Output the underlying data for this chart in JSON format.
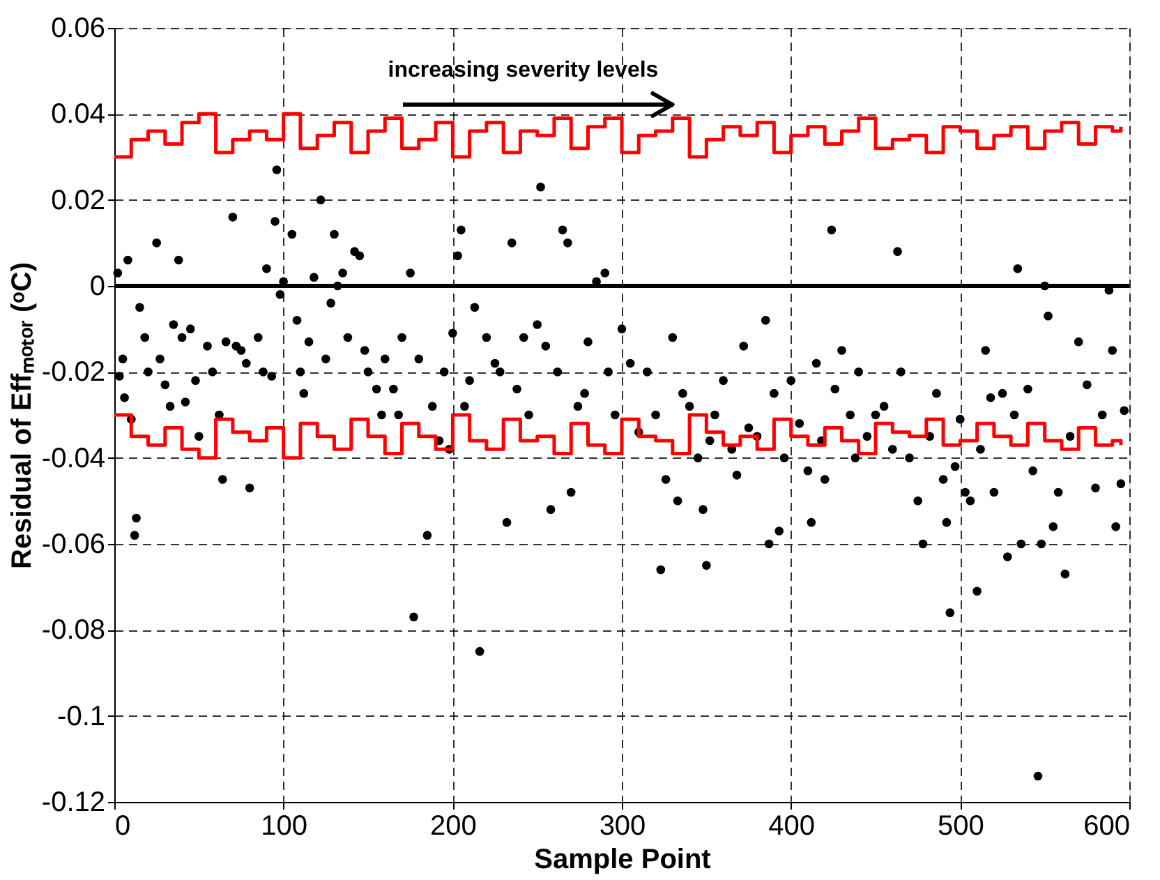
{
  "chart_data": {
    "type": "scatter",
    "xlabel": "Sample Point",
    "ylabel": "Residual of Effₘₒₜₒᵣ (ᵒC)",
    "annotations": [
      "increasing severity levels"
    ],
    "xlim": [
      0,
      600
    ],
    "xticks": [
      0,
      100,
      200,
      300,
      400,
      500,
      600
    ],
    "ylim": [
      -0.12,
      0.06
    ],
    "yticks": [
      -0.12,
      -0.1,
      -0.08,
      -0.06,
      -0.04,
      -0.02,
      0,
      0.02,
      0.04,
      0.06
    ],
    "grid": true,
    "ref_lines": [
      {
        "axis": "y",
        "value": 0,
        "color": "#000000"
      }
    ],
    "series": [
      {
        "type": "scatter",
        "marker": "circle",
        "color": "#000000",
        "x": [
          2,
          5,
          8,
          3,
          6,
          10,
          12,
          13,
          15,
          18,
          20,
          25,
          27,
          30,
          33,
          35,
          38,
          40,
          42,
          45,
          48,
          50,
          55,
          58,
          62,
          64,
          66,
          70,
          72,
          75,
          78,
          80,
          85,
          88,
          90,
          93,
          95,
          96,
          98,
          100,
          105,
          108,
          110,
          112,
          115,
          118,
          122,
          125,
          128,
          130,
          132,
          135,
          138,
          142,
          145,
          148,
          150,
          155,
          158,
          160,
          165,
          168,
          170,
          175,
          177,
          180,
          185,
          188,
          192,
          195,
          198,
          200,
          203,
          205,
          207,
          210,
          213,
          216,
          220,
          225,
          228,
          232,
          235,
          238,
          242,
          245,
          250,
          252,
          255,
          258,
          262,
          265,
          268,
          270,
          274,
          278,
          280,
          285,
          290,
          292,
          296,
          300,
          305,
          310,
          315,
          320,
          323,
          326,
          330,
          333,
          336,
          340,
          345,
          348,
          350,
          352,
          355,
          360,
          365,
          368,
          372,
          375,
          380,
          385,
          387,
          390,
          393,
          396,
          400,
          405,
          410,
          412,
          415,
          418,
          420,
          424,
          426,
          430,
          435,
          438,
          440,
          445,
          450,
          455,
          460,
          463,
          465,
          470,
          475,
          478,
          482,
          486,
          490,
          492,
          494,
          497,
          500,
          503,
          506,
          510,
          512,
          515,
          518,
          520,
          525,
          528,
          532,
          534,
          536,
          540,
          543,
          546,
          548,
          550,
          552,
          555,
          558,
          562,
          565,
          570,
          575,
          580,
          584,
          588,
          590,
          592,
          595,
          597
        ],
        "values": [
          0.003,
          -0.017,
          0.006,
          -0.021,
          -0.026,
          -0.031,
          -0.058,
          -0.054,
          -0.005,
          -0.012,
          -0.02,
          0.01,
          -0.017,
          -0.023,
          -0.028,
          -0.009,
          0.006,
          -0.012,
          -0.027,
          -0.01,
          -0.022,
          -0.035,
          -0.014,
          -0.02,
          -0.03,
          -0.045,
          -0.013,
          0.016,
          -0.014,
          -0.015,
          -0.018,
          -0.047,
          -0.012,
          -0.02,
          0.004,
          -0.021,
          0.015,
          0.027,
          -0.002,
          0.001,
          0.012,
          -0.008,
          -0.02,
          -0.025,
          -0.013,
          0.002,
          0.02,
          -0.017,
          -0.004,
          0.012,
          0.0,
          0.003,
          -0.012,
          0.008,
          0.007,
          -0.015,
          -0.02,
          -0.024,
          -0.03,
          -0.017,
          -0.024,
          -0.03,
          -0.012,
          0.003,
          -0.077,
          -0.017,
          -0.058,
          -0.028,
          -0.036,
          -0.02,
          -0.038,
          -0.011,
          0.007,
          0.013,
          -0.028,
          -0.022,
          -0.005,
          -0.085,
          -0.012,
          -0.018,
          -0.02,
          -0.055,
          0.01,
          -0.024,
          -0.012,
          -0.03,
          -0.009,
          0.023,
          -0.014,
          -0.052,
          -0.02,
          0.013,
          0.01,
          -0.048,
          -0.028,
          -0.025,
          -0.013,
          0.001,
          0.003,
          -0.02,
          -0.03,
          -0.01,
          -0.018,
          -0.034,
          -0.02,
          -0.03,
          -0.066,
          -0.045,
          -0.012,
          -0.05,
          -0.025,
          -0.028,
          -0.04,
          -0.052,
          -0.065,
          -0.036,
          -0.03,
          -0.022,
          -0.038,
          -0.044,
          -0.014,
          -0.033,
          -0.035,
          -0.008,
          -0.06,
          -0.025,
          -0.057,
          -0.04,
          -0.022,
          -0.032,
          -0.043,
          -0.055,
          -0.018,
          -0.036,
          -0.045,
          0.013,
          -0.024,
          -0.015,
          -0.03,
          -0.04,
          -0.02,
          -0.035,
          -0.03,
          -0.028,
          -0.038,
          0.008,
          -0.02,
          -0.04,
          -0.05,
          -0.06,
          -0.035,
          -0.025,
          -0.045,
          -0.055,
          -0.076,
          -0.042,
          -0.031,
          -0.048,
          -0.05,
          -0.071,
          -0.038,
          -0.015,
          -0.026,
          -0.048,
          -0.025,
          -0.063,
          -0.03,
          0.004,
          -0.06,
          -0.024,
          -0.043,
          -0.114,
          -0.06,
          0.0,
          -0.007,
          -0.056,
          -0.048,
          -0.067,
          -0.035,
          -0.013,
          -0.023,
          -0.047,
          -0.03,
          -0.001,
          -0.015,
          -0.056,
          -0.046,
          -0.029
        ]
      },
      {
        "type": "step",
        "color": "#ff0000",
        "line_style": "solid",
        "x": [
          0,
          10,
          20,
          30,
          40,
          50,
          60,
          70,
          80,
          90,
          100,
          110,
          120,
          130,
          140,
          150,
          160,
          170,
          180,
          190,
          200,
          210,
          220,
          230,
          240,
          250,
          260,
          270,
          280,
          290,
          300,
          310,
          320,
          330,
          340,
          350,
          360,
          370,
          380,
          390,
          400,
          410,
          420,
          430,
          440,
          450,
          460,
          470,
          480,
          490,
          500,
          510,
          520,
          530,
          540,
          550,
          560,
          570,
          580,
          590,
          595
        ],
        "values": [
          0.03,
          0.034,
          0.036,
          0.033,
          0.038,
          0.04,
          0.031,
          0.034,
          0.036,
          0.034,
          0.04,
          0.032,
          0.035,
          0.038,
          0.031,
          0.036,
          0.039,
          0.032,
          0.034,
          0.038,
          0.03,
          0.036,
          0.038,
          0.031,
          0.036,
          0.035,
          0.039,
          0.032,
          0.037,
          0.039,
          0.031,
          0.035,
          0.036,
          0.039,
          0.03,
          0.034,
          0.037,
          0.035,
          0.038,
          0.031,
          0.035,
          0.037,
          0.033,
          0.036,
          0.039,
          0.032,
          0.034,
          0.035,
          0.031,
          0.037,
          0.036,
          0.032,
          0.035,
          0.037,
          0.032,
          0.036,
          0.038,
          0.033,
          0.037,
          0.036,
          0.037
        ]
      },
      {
        "type": "step",
        "color": "#ff0000",
        "line_style": "solid",
        "x": [
          0,
          10,
          20,
          30,
          40,
          50,
          60,
          70,
          80,
          90,
          100,
          110,
          120,
          130,
          140,
          150,
          160,
          170,
          180,
          190,
          200,
          210,
          220,
          230,
          240,
          250,
          260,
          270,
          280,
          290,
          300,
          310,
          320,
          330,
          340,
          350,
          360,
          370,
          380,
          390,
          400,
          410,
          420,
          430,
          440,
          450,
          460,
          470,
          480,
          490,
          500,
          510,
          520,
          530,
          540,
          550,
          560,
          570,
          580,
          590,
          595
        ],
        "values": [
          -0.03,
          -0.035,
          -0.037,
          -0.033,
          -0.038,
          -0.04,
          -0.031,
          -0.034,
          -0.036,
          -0.033,
          -0.04,
          -0.032,
          -0.035,
          -0.038,
          -0.031,
          -0.035,
          -0.039,
          -0.032,
          -0.035,
          -0.038,
          -0.03,
          -0.036,
          -0.038,
          -0.031,
          -0.036,
          -0.035,
          -0.039,
          -0.032,
          -0.037,
          -0.039,
          -0.031,
          -0.035,
          -0.036,
          -0.039,
          -0.03,
          -0.034,
          -0.037,
          -0.035,
          -0.038,
          -0.031,
          -0.035,
          -0.037,
          -0.033,
          -0.036,
          -0.039,
          -0.032,
          -0.034,
          -0.035,
          -0.031,
          -0.037,
          -0.036,
          -0.032,
          -0.035,
          -0.037,
          -0.032,
          -0.036,
          -0.038,
          -0.033,
          -0.037,
          -0.036,
          -0.037
        ]
      }
    ]
  }
}
